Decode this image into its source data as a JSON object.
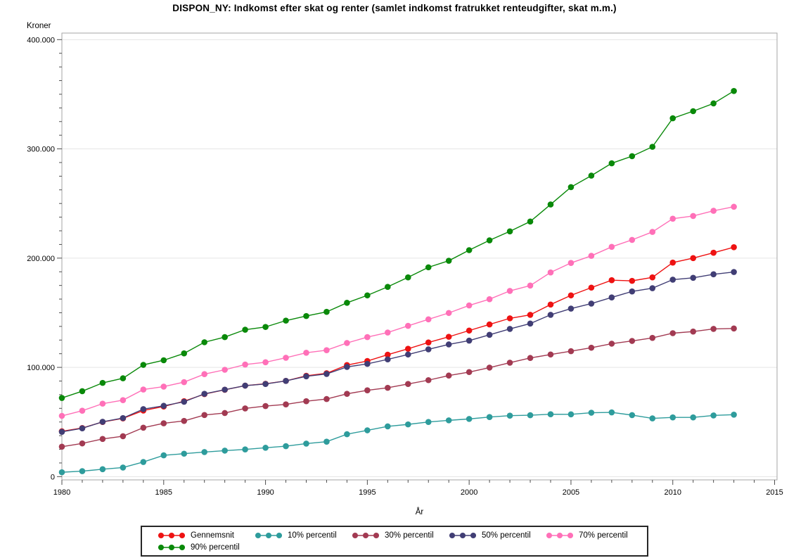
{
  "chart_data": {
    "type": "line",
    "title": "DISPON_NY: Indkomst efter skat og renter (samlet indkomst fratrukket renteudgifter, skat m.m.)",
    "y_unit_label": "Kroner",
    "xlabel": "År",
    "legend_position": "bottom",
    "grid": "horizontal-major",
    "xlim": [
      1980,
      2015.12
    ],
    "ylim": [
      -3000,
      406000
    ],
    "xticks": {
      "major": [
        1980,
        1985,
        1990,
        1995,
        2000,
        2005,
        2010,
        2015
      ],
      "minor_step": 1
    },
    "yticks": {
      "major": [
        {
          "value": 0,
          "label": "0"
        },
        {
          "value": 100000,
          "label": "100.000"
        },
        {
          "value": 200000,
          "label": "200.000"
        },
        {
          "value": 300000,
          "label": "300.000"
        },
        {
          "value": 400000,
          "label": "400.000"
        }
      ],
      "minor_step": 12500
    },
    "style": {
      "frame": "#A6A6A6",
      "grid": "#E5E5E5",
      "tick": "#4D4D4D",
      "legend_border": "#262626"
    },
    "x": [
      1980,
      1981,
      1982,
      1983,
      1984,
      1985,
      1986,
      1987,
      1988,
      1989,
      1990,
      1991,
      1992,
      1993,
      1994,
      1995,
      1996,
      1997,
      1998,
      1999,
      2000,
      2001,
      2002,
      2003,
      2004,
      2005,
      2006,
      2007,
      2008,
      2009,
      2010,
      2011,
      2012,
      2013
    ],
    "series": [
      {
        "name": "Gennemsnit",
        "color": "#EE1212",
        "values": [
          41500,
          44500,
          50000,
          53300,
          60500,
          64200,
          69000,
          75500,
          79500,
          83300,
          85000,
          87600,
          92300,
          94600,
          102100,
          105800,
          111600,
          117000,
          122800,
          128000,
          133700,
          139300,
          144900,
          148100,
          157500,
          165900,
          173000,
          179800,
          179200,
          182400,
          195900,
          200000,
          204900,
          210000
        ]
      },
      {
        "name": "10% percentil",
        "color": "#2E9C9C",
        "values": [
          4000,
          5000,
          6800,
          8300,
          13400,
          19500,
          21000,
          22500,
          23800,
          24900,
          26400,
          27900,
          30200,
          32000,
          38800,
          42400,
          46000,
          47800,
          50000,
          51500,
          52800,
          54500,
          55800,
          56200,
          57100,
          57000,
          58500,
          58800,
          56300,
          53300,
          54200,
          54200,
          56000,
          56700
        ]
      },
      {
        "name": "30% percentil",
        "color": "#A23A52",
        "values": [
          27400,
          30400,
          34500,
          37000,
          44800,
          48800,
          51000,
          56400,
          58200,
          62400,
          64600,
          66100,
          69000,
          71000,
          75800,
          79000,
          81300,
          84800,
          88300,
          92500,
          95700,
          99800,
          104300,
          108600,
          111800,
          114800,
          118000,
          121700,
          124200,
          127000,
          131300,
          132800,
          135200,
          135600
        ]
      },
      {
        "name": "50% percentil",
        "color": "#413E75",
        "values": [
          41000,
          44200,
          50200,
          53600,
          61800,
          64800,
          68500,
          75800,
          79600,
          83300,
          84800,
          87600,
          91800,
          94000,
          100400,
          103200,
          107300,
          111800,
          116500,
          121000,
          124500,
          129800,
          135200,
          140100,
          148100,
          153800,
          158400,
          164000,
          169500,
          172500,
          180300,
          182000,
          185200,
          187300
        ]
      },
      {
        "name": "70% percentil",
        "color": "#FF70B8",
        "values": [
          55600,
          60300,
          66800,
          70000,
          79700,
          82400,
          86500,
          93800,
          97800,
          102600,
          104700,
          108800,
          113400,
          115700,
          122300,
          127700,
          131900,
          138000,
          144000,
          149800,
          156700,
          162400,
          170000,
          174900,
          186900,
          195600,
          202100,
          210300,
          216700,
          224000,
          236100,
          238600,
          243300,
          247000
        ]
      },
      {
        "name": "90% percentil",
        "color": "#098909",
        "values": [
          72000,
          78200,
          85800,
          90000,
          102300,
          106500,
          112800,
          123000,
          127700,
          134500,
          137000,
          142800,
          147000,
          150800,
          159100,
          165900,
          173700,
          182400,
          191600,
          197600,
          207300,
          216300,
          224500,
          233500,
          249100,
          265000,
          275500,
          286800,
          293300,
          301900,
          328000,
          334500,
          341600,
          353000
        ]
      }
    ]
  }
}
